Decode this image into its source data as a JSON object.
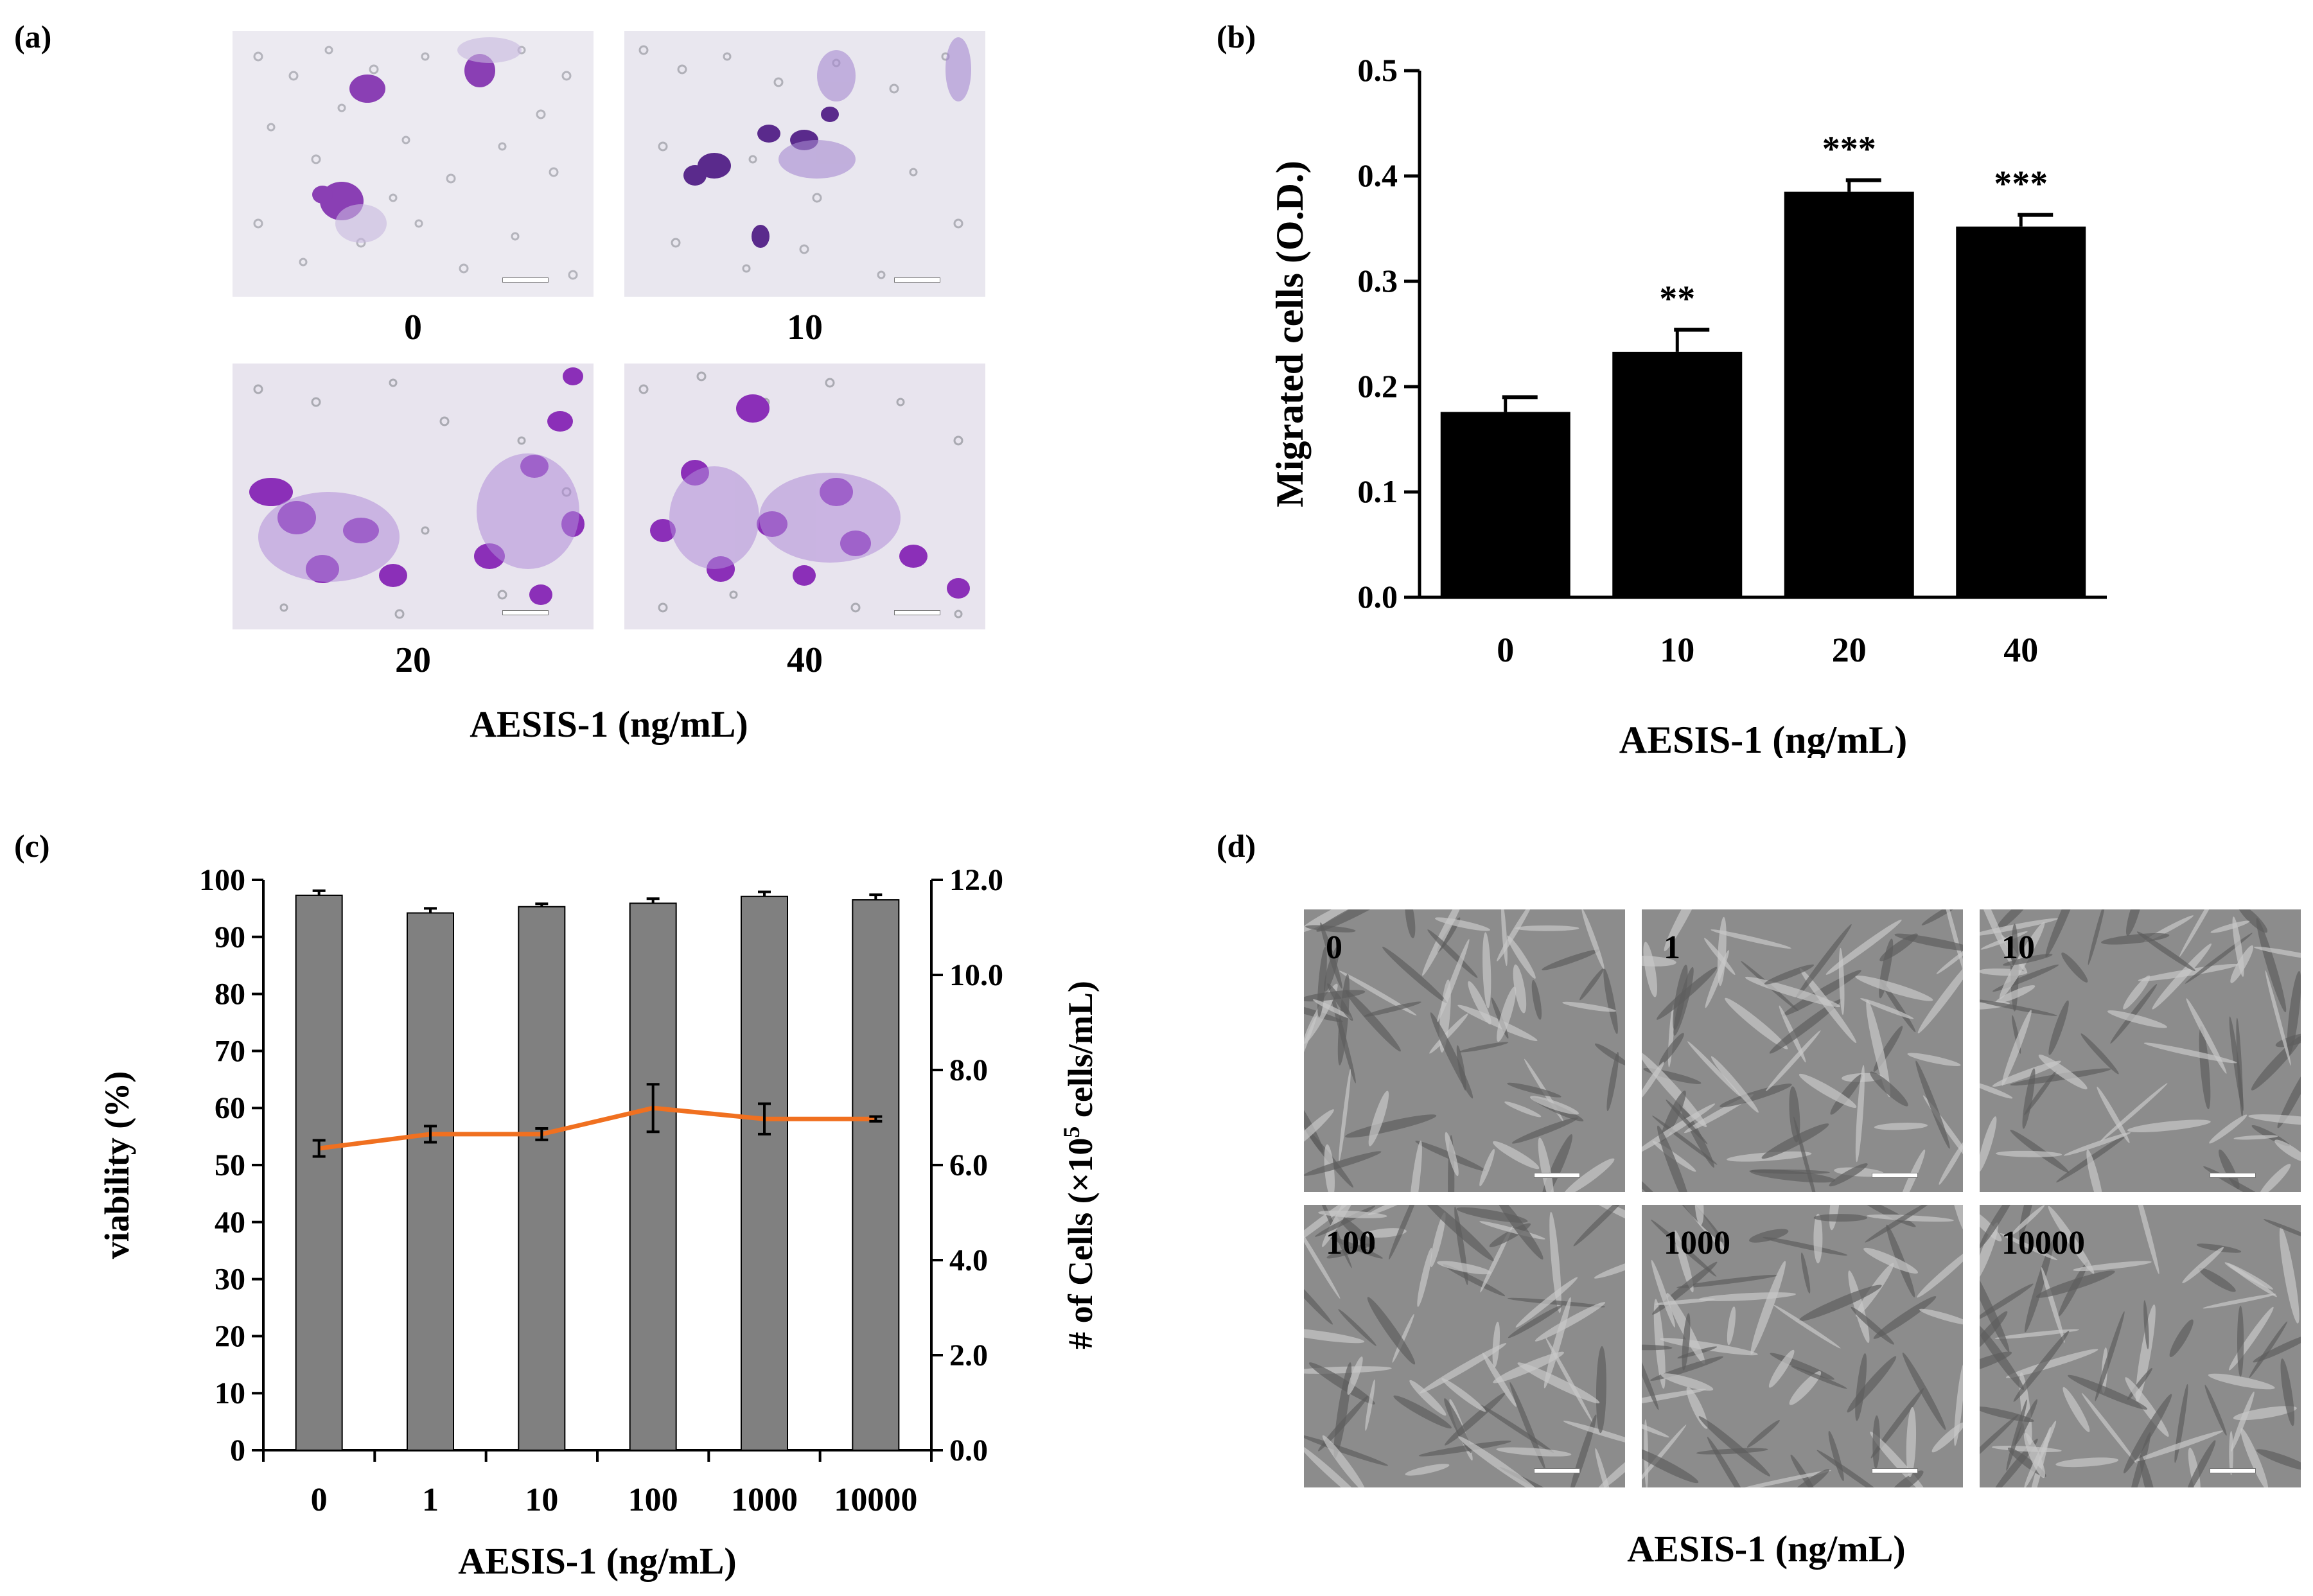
{
  "panel_labels": {
    "a": "(a)",
    "b": "(b)",
    "c": "(c)",
    "d": "(d)"
  },
  "panel_a": {
    "tiles": [
      "0",
      "10",
      "20",
      "40"
    ],
    "caption": "AESIS-1 (ng/mL)"
  },
  "panel_d": {
    "tiles": [
      "0",
      "1",
      "10",
      "100",
      "1000",
      "10000"
    ],
    "caption": "AESIS-1 (ng/mL)"
  },
  "chart_data": [
    {
      "id": "b",
      "type": "bar",
      "categories": [
        "0",
        "10",
        "20",
        "40"
      ],
      "values": [
        0.176,
        0.233,
        0.385,
        0.352
      ],
      "errors": [
        0.014,
        0.021,
        0.011,
        0.011
      ],
      "significance": [
        "",
        "**",
        "***",
        "***"
      ],
      "xlabel": "AESIS-1 (ng/mL)",
      "ylabel": "Migrated cells (O.D.)",
      "ylim": [
        0,
        0.5
      ],
      "yticks": [
        "0.0",
        "0.1",
        "0.2",
        "0.3",
        "0.4",
        "0.5"
      ],
      "bar_color": "#000000"
    },
    {
      "id": "c",
      "type": "bar",
      "categories": [
        "0",
        "1",
        "10",
        "100",
        "1000",
        "10000"
      ],
      "xlabel": "AESIS-1 (ng/mL)",
      "ylabel": "viability (%)",
      "y2label": "# of Cells (×10",
      "y2label_sup": "5",
      "y2label_tail": " cells/mL)",
      "ylim": [
        0,
        100
      ],
      "y2lim": [
        0,
        12
      ],
      "yticks": [
        "0",
        "10",
        "20",
        "30",
        "40",
        "50",
        "60",
        "70",
        "80",
        "90",
        "100"
      ],
      "y2ticks": [
        "0.0",
        "2.0",
        "4.0",
        "6.0",
        "8.0",
        "10.0",
        "12.0"
      ],
      "series": [
        {
          "kind": "bar",
          "axis": "left",
          "values": [
            97.3,
            94.2,
            95.3,
            95.9,
            97.1,
            96.5
          ],
          "errors": [
            0.8,
            0.8,
            0.5,
            0.8,
            0.8,
            0.9
          ],
          "color": "#808080"
        },
        {
          "kind": "line",
          "axis": "right",
          "values": [
            6.35,
            6.65,
            6.65,
            7.2,
            6.97,
            6.97
          ],
          "errors": [
            0.17,
            0.17,
            0.12,
            0.5,
            0.32,
            0.05
          ],
          "color": "#f07020"
        }
      ]
    }
  ]
}
